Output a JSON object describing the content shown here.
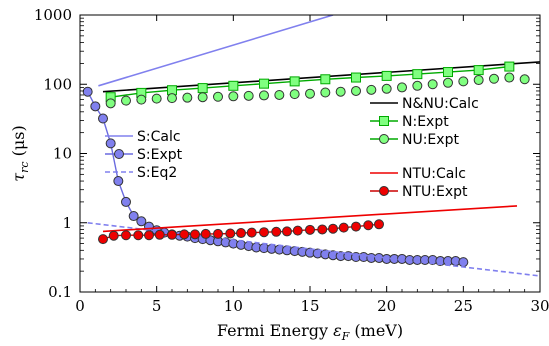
{
  "chart_data": {
    "type": "scatter",
    "xlabel_prefix": "Fermi Energy ",
    "xlabel_symbol": "ε",
    "xlabel_sub": "F",
    "xlabel_suffix": " (meV)",
    "ylabel_symbol": "τ",
    "ylabel_sub": "rc",
    "ylabel_suffix": " (μs)",
    "xlim": [
      0,
      30
    ],
    "ylim": [
      0.1,
      1000
    ],
    "yscale": "log",
    "xticks": [
      0,
      5,
      10,
      15,
      20,
      25,
      30
    ],
    "xtick_labels": [
      "0",
      "5",
      "10",
      "15",
      "20",
      "25",
      "30"
    ],
    "yticks": [
      0.1,
      1,
      10,
      100,
      1000
    ],
    "ytick_labels": [
      "0.1",
      "1",
      "10",
      "100",
      "1000"
    ],
    "grid": false,
    "series": [
      {
        "name": "S:Calc",
        "kind": "line",
        "color": "#8080ee",
        "dash": false,
        "x": [
          1.2,
          16.5
        ],
        "y": [
          95,
          1000
        ]
      },
      {
        "name": "S:Expt",
        "kind": "line+marker",
        "color": "#6a6adf",
        "marker_fill": "#8080ee",
        "marker": "circle",
        "x": [
          0.5,
          1.0,
          1.5,
          2.0,
          2.5,
          3.0,
          3.5,
          4.0,
          4.5,
          5.0,
          5.5,
          6.0,
          6.5,
          7.0,
          7.5,
          8.0,
          8.5,
          9.0,
          9.5,
          10.0,
          10.5,
          11.0,
          11.5,
          12.0,
          12.5,
          13.0,
          13.5,
          14.0,
          14.5,
          15.0,
          15.5,
          16.0,
          16.5,
          17.0,
          17.5,
          18.0,
          18.5,
          19.0,
          19.5,
          20.0,
          20.5,
          21.0,
          21.5,
          22.0,
          22.5,
          23.0,
          23.5,
          24.0,
          24.5,
          25.0
        ],
        "y": [
          78,
          48,
          32,
          14,
          4.0,
          2.0,
          1.25,
          1.05,
          0.88,
          0.78,
          0.72,
          0.68,
          0.65,
          0.63,
          0.6,
          0.58,
          0.56,
          0.54,
          0.52,
          0.5,
          0.48,
          0.46,
          0.44,
          0.43,
          0.42,
          0.41,
          0.4,
          0.39,
          0.38,
          0.37,
          0.36,
          0.35,
          0.34,
          0.33,
          0.33,
          0.32,
          0.32,
          0.31,
          0.31,
          0.3,
          0.3,
          0.3,
          0.29,
          0.29,
          0.29,
          0.29,
          0.28,
          0.28,
          0.28,
          0.27
        ]
      },
      {
        "name": "S:Eq2",
        "kind": "line",
        "color": "#8080ee",
        "dash": true,
        "x": [
          0.5,
          30
        ],
        "y": [
          1.0,
          0.17
        ]
      },
      {
        "name": "N&NU:Calc",
        "kind": "line",
        "color": "#000000",
        "dash": false,
        "x": [
          1.5,
          30
        ],
        "y": [
          78,
          210
        ]
      },
      {
        "name": "N:Expt",
        "kind": "line+marker",
        "color": "#00aa00",
        "marker_fill": "#80ff80",
        "marker": "square",
        "x": [
          2,
          4,
          6,
          8,
          10,
          12,
          14,
          16,
          18,
          20,
          22,
          24,
          26,
          28
        ],
        "y": [
          65,
          75,
          82,
          88,
          95,
          102,
          110,
          118,
          125,
          132,
          140,
          150,
          160,
          180
        ]
      },
      {
        "name": "NU:Expt",
        "kind": "marker",
        "color": "#00aa00",
        "marker_fill": "#80ff80",
        "marker": "circle",
        "x": [
          2,
          3,
          4,
          5,
          6,
          7,
          8,
          9,
          10,
          11,
          12,
          13,
          14,
          15,
          16,
          17,
          18,
          19,
          20,
          21,
          22,
          23,
          24,
          25,
          26,
          27,
          28,
          29
        ],
        "y": [
          53,
          58,
          60,
          62,
          63,
          64,
          65,
          66,
          67,
          68,
          69,
          70,
          72,
          73,
          76,
          78,
          80,
          83,
          86,
          90,
          95,
          100,
          105,
          110,
          115,
          120,
          125,
          118
        ]
      },
      {
        "name": "NTU:Calc",
        "kind": "line",
        "color": "#ee0000",
        "dash": false,
        "x": [
          1.5,
          28.5
        ],
        "y": [
          0.75,
          1.75
        ]
      },
      {
        "name": "NTU:Expt",
        "kind": "line+marker",
        "color": "#cc0000",
        "marker_fill": "#ee0000",
        "marker": "circle",
        "x": [
          1.5,
          2.2,
          3.0,
          3.8,
          4.5,
          5.2,
          6.0,
          6.8,
          7.5,
          8.2,
          9.0,
          9.8,
          10.5,
          11.2,
          12.0,
          12.8,
          13.5,
          14.2,
          15.0,
          15.8,
          16.5,
          17.2,
          18.0,
          18.8,
          19.5
        ],
        "y": [
          0.58,
          0.65,
          0.66,
          0.66,
          0.66,
          0.67,
          0.67,
          0.68,
          0.68,
          0.69,
          0.69,
          0.7,
          0.71,
          0.72,
          0.73,
          0.74,
          0.75,
          0.77,
          0.79,
          0.8,
          0.82,
          0.85,
          0.88,
          0.92,
          0.95
        ]
      }
    ],
    "legends": [
      {
        "position": "center-right",
        "entries": [
          "N&NU:Calc",
          "N:Expt",
          "NU:Expt"
        ]
      },
      {
        "position": "center-left",
        "entries": [
          "S:Calc",
          "S:Expt",
          "S:Eq2"
        ]
      },
      {
        "position": "lower-right",
        "entries": [
          "NTU:Calc",
          "NTU:Expt"
        ]
      }
    ]
  }
}
